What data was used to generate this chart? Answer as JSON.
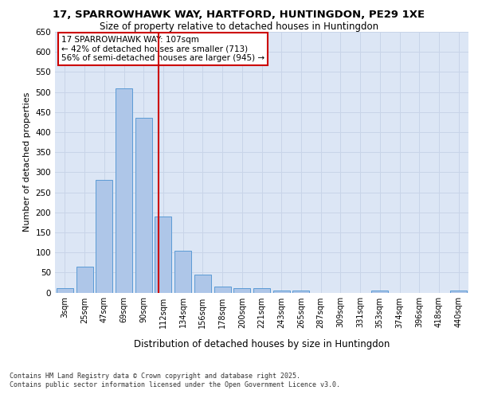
{
  "title_line1": "17, SPARROWHAWK WAY, HARTFORD, HUNTINGDON, PE29 1XE",
  "title_line2": "Size of property relative to detached houses in Huntingdon",
  "xlabel": "Distribution of detached houses by size in Huntingdon",
  "ylabel": "Number of detached properties",
  "categories": [
    "3sqm",
    "25sqm",
    "47sqm",
    "69sqm",
    "90sqm",
    "112sqm",
    "134sqm",
    "156sqm",
    "178sqm",
    "200sqm",
    "221sqm",
    "243sqm",
    "265sqm",
    "287sqm",
    "309sqm",
    "331sqm",
    "353sqm",
    "374sqm",
    "396sqm",
    "418sqm",
    "440sqm"
  ],
  "bar_heights": [
    10,
    65,
    280,
    510,
    435,
    190,
    105,
    45,
    15,
    10,
    10,
    5,
    5,
    0,
    0,
    0,
    5,
    0,
    0,
    0,
    5
  ],
  "bar_color": "#aec6e8",
  "bar_edge_color": "#5b9bd5",
  "vline_color": "#cc0000",
  "annotation_text": "17 SPARROWHAWK WAY: 107sqm\n← 42% of detached houses are smaller (713)\n56% of semi-detached houses are larger (945) →",
  "annotation_box_color": "#ffffff",
  "annotation_box_edge_color": "#cc0000",
  "ylim": [
    0,
    650
  ],
  "yticks": [
    0,
    50,
    100,
    150,
    200,
    250,
    300,
    350,
    400,
    450,
    500,
    550,
    600,
    650
  ],
  "grid_color": "#c8d4e8",
  "background_color": "#dce6f5",
  "footer_line1": "Contains HM Land Registry data © Crown copyright and database right 2025.",
  "footer_line2": "Contains public sector information licensed under the Open Government Licence v3.0."
}
